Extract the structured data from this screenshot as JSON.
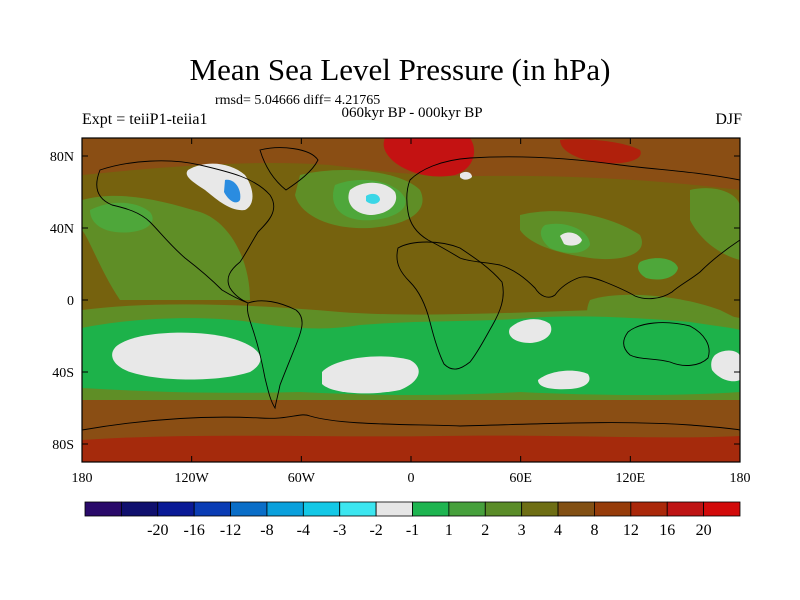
{
  "title": "Mean Sea Level Pressure (in hPa)",
  "stats": "rmsd= 5.04666 diff= 4.21765",
  "period": "060kyr BP - 000kyr BP",
  "experiment": "Expt = teiiP1-teiia1",
  "season": "DJF",
  "map": {
    "projection": "cylindrical equidistant",
    "lon_range": [
      -180,
      180
    ],
    "lat_range": [
      -90,
      90
    ],
    "lon_ticks": [
      {
        "value": -180,
        "label": "180"
      },
      {
        "value": -120,
        "label": "120W"
      },
      {
        "value": -60,
        "label": "60W"
      },
      {
        "value": 0,
        "label": "0"
      },
      {
        "value": 60,
        "label": "60E"
      },
      {
        "value": 120,
        "label": "120E"
      },
      {
        "value": 180,
        "label": "180"
      }
    ],
    "lat_ticks": [
      {
        "value": 80,
        "label": "80N"
      },
      {
        "value": 40,
        "label": "40N"
      },
      {
        "value": 0,
        "label": "0"
      },
      {
        "value": -40,
        "label": "40S"
      },
      {
        "value": -80,
        "label": "80S"
      }
    ]
  },
  "colorbar": {
    "colors": [
      "#2a0a6a",
      "#10106e",
      "#0a1a96",
      "#0a3cb4",
      "#0a6ec8",
      "#0aa0dc",
      "#14c8e6",
      "#3ce6f0",
      "#e6e6e6",
      "#1eb450",
      "#46a03c",
      "#5a8c28",
      "#6e6e14",
      "#825014",
      "#963c0a",
      "#aa280a",
      "#be1414",
      "#d20a0a"
    ],
    "labels": [
      "-20",
      "-16",
      "-12",
      "-8",
      "-4",
      "-3",
      "-2",
      "-1",
      "1",
      "2",
      "3",
      "4",
      "8",
      "12",
      "16",
      "20"
    ]
  },
  "fill_colors": {
    "background": "#76620e",
    "low_green": "#4ea73a",
    "mid_green": "#5f8e26",
    "bright_green": "#1db24a",
    "white": "#e8e8e8",
    "brown": "#8a4e14",
    "red": "#c41212",
    "cyan": "#3ad6e6"
  }
}
